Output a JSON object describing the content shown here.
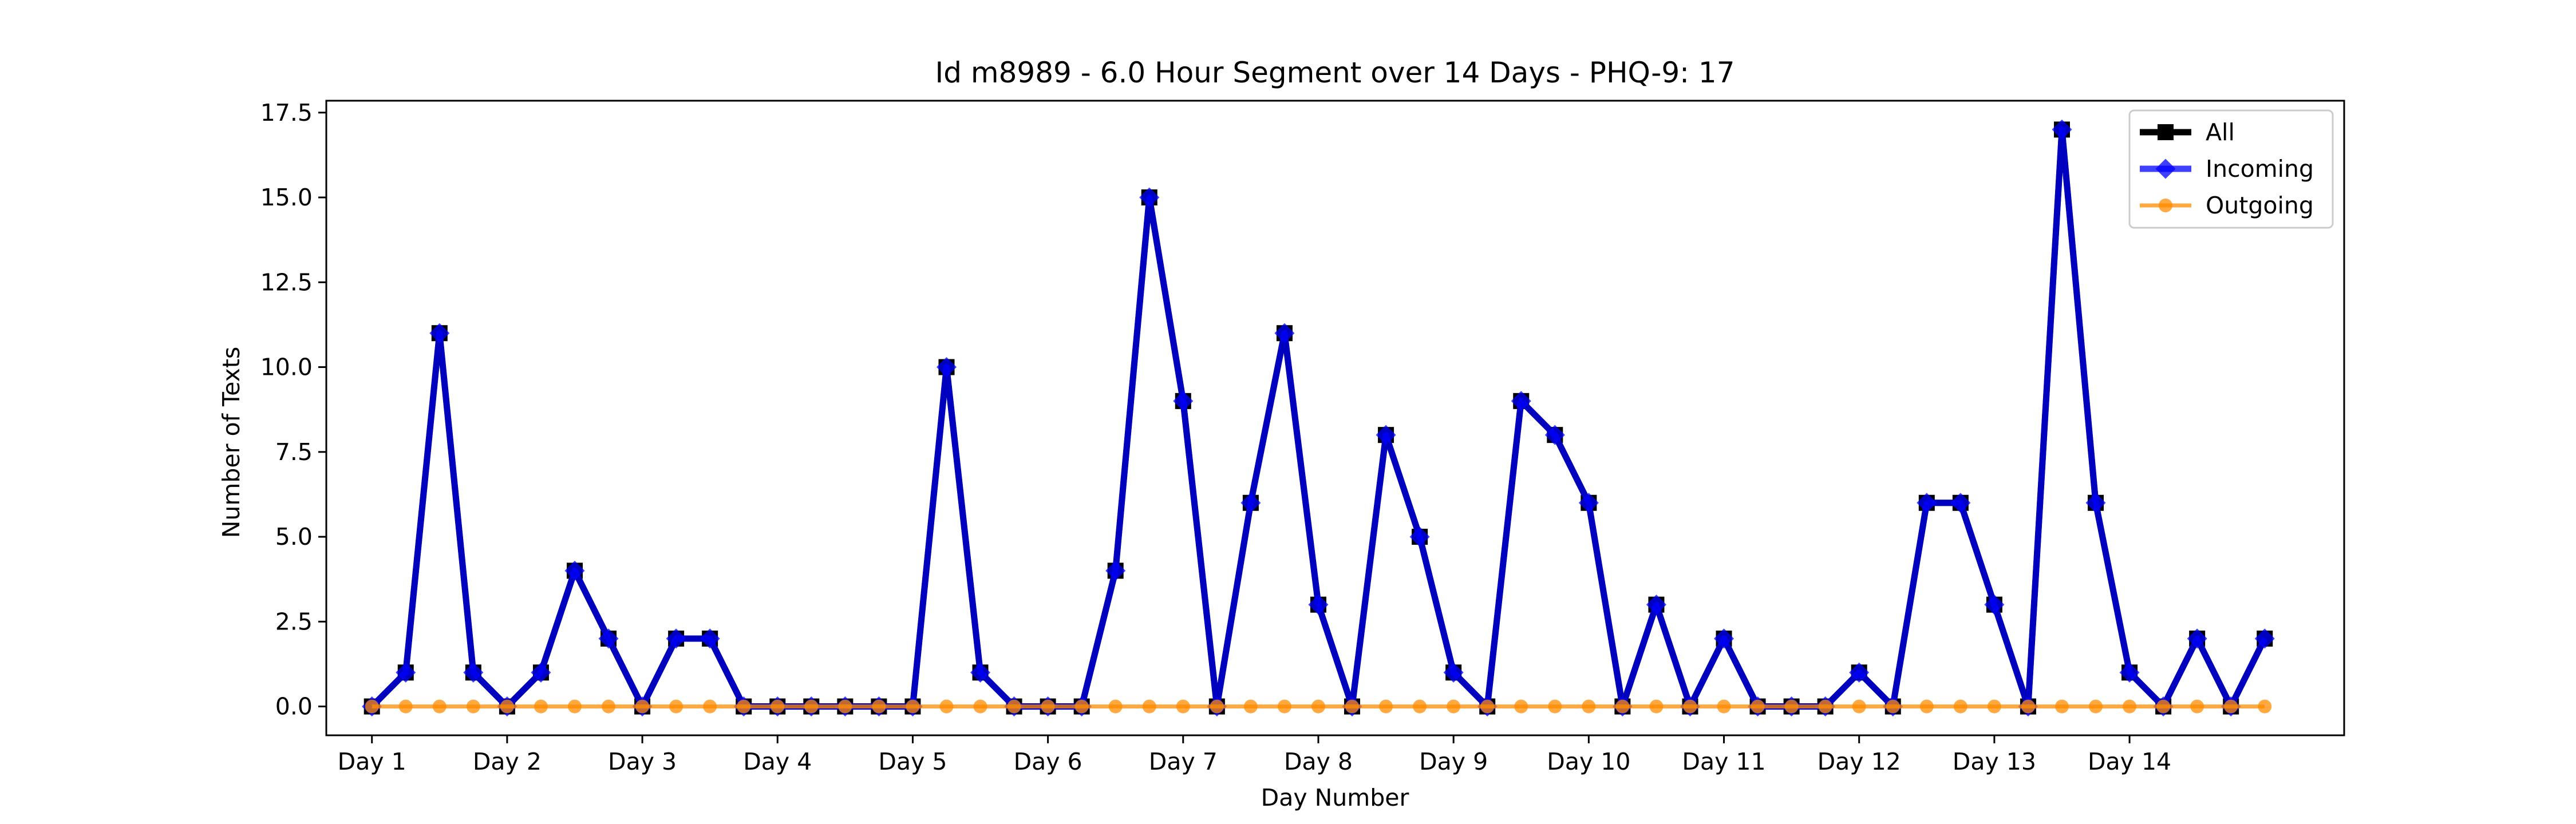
{
  "chart_data": {
    "type": "line",
    "title": "Id m8989 - 6.0 Hour Segment over 14 Days - PHQ-9: 17",
    "xlabel": "Day Number",
    "ylabel": "Number of Texts",
    "ylim": [
      -0.85,
      17.85
    ],
    "yticks": [
      "0.0",
      "2.5",
      "5.0",
      "7.5",
      "10.0",
      "12.5",
      "15.0",
      "17.5"
    ],
    "ytick_values": [
      0,
      2.5,
      5,
      7.5,
      10,
      12.5,
      15,
      17.5
    ],
    "xlim": [
      -1.35,
      58.35
    ],
    "xtick_labels": [
      "Day 1",
      "Day 2",
      "Day 3",
      "Day 4",
      "Day 5",
      "Day 6",
      "Day 7",
      "Day 8",
      "Day 9",
      "Day 10",
      "Day 11",
      "Day 12",
      "Day 13",
      "Day 14"
    ],
    "xtick_positions": [
      0,
      4,
      8,
      12,
      16,
      20,
      24,
      28,
      32,
      36,
      40,
      44,
      48,
      52
    ],
    "grid": false,
    "legend_position": "top-right",
    "series": [
      {
        "name": "All",
        "color": "#000000",
        "marker": "square",
        "values": [
          0,
          1,
          11,
          1,
          0,
          1,
          4,
          2,
          0,
          2,
          2,
          0,
          0,
          0,
          0,
          0,
          0,
          10,
          1,
          0,
          0,
          0,
          4,
          15,
          9,
          0,
          6,
          11,
          3,
          0,
          8,
          5,
          1,
          0,
          9,
          8,
          6,
          0,
          3,
          0,
          2,
          0,
          0,
          0,
          1,
          0,
          6,
          6,
          3,
          0,
          17,
          6,
          1,
          0,
          2,
          0,
          2
        ]
      },
      {
        "name": "Incoming",
        "color": "#0000ff",
        "marker": "diamond",
        "values": [
          0,
          1,
          11,
          1,
          0,
          1,
          4,
          2,
          0,
          2,
          2,
          0,
          0,
          0,
          0,
          0,
          0,
          10,
          1,
          0,
          0,
          0,
          4,
          15,
          9,
          0,
          6,
          11,
          3,
          0,
          8,
          5,
          1,
          0,
          9,
          8,
          6,
          0,
          3,
          0,
          2,
          0,
          0,
          0,
          1,
          0,
          6,
          6,
          3,
          0,
          17,
          6,
          1,
          0,
          2,
          0,
          2
        ]
      },
      {
        "name": "Outgoing",
        "color": "#ff8c00",
        "marker": "circle",
        "values": [
          0,
          0,
          0,
          0,
          0,
          0,
          0,
          0,
          0,
          0,
          0,
          0,
          0,
          0,
          0,
          0,
          0,
          0,
          0,
          0,
          0,
          0,
          0,
          0,
          0,
          0,
          0,
          0,
          0,
          0,
          0,
          0,
          0,
          0,
          0,
          0,
          0,
          0,
          0,
          0,
          0,
          0,
          0,
          0,
          0,
          0,
          0,
          0,
          0,
          0,
          0,
          0,
          0,
          0,
          0,
          0,
          0
        ]
      }
    ]
  }
}
